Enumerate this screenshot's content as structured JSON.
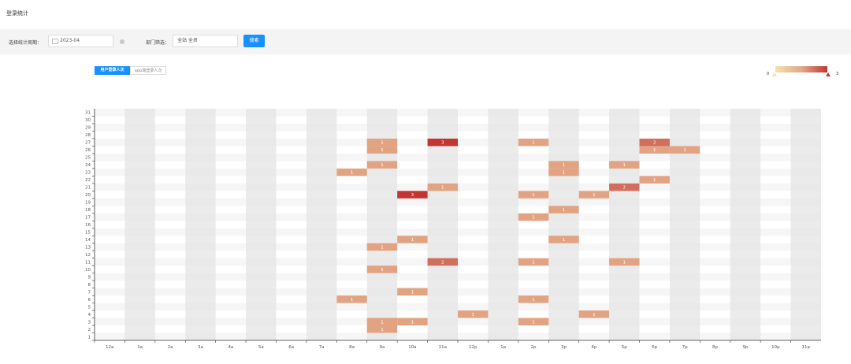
{
  "page": {
    "title": "登录统计"
  },
  "filters": {
    "date_label": "选择统计周期：",
    "date_value": "2023-04",
    "dept_label": "部门筛选：",
    "dept_value": "全站 全员",
    "search_label": "搜索"
  },
  "tabs": [
    {
      "label": "用户登录人次",
      "active": true
    },
    {
      "label": "app端登录人次",
      "active": false
    }
  ],
  "visual_map": {
    "min": "0",
    "max": "3",
    "colors": [
      "#f4e1a7",
      "#c23531"
    ]
  },
  "colors": {
    "accent": "#1890ff",
    "band_alt": "#e8e8e8",
    "cell_low": "#e2a382",
    "cell_high": "#c23531"
  },
  "chart_data": {
    "type": "heatmap",
    "x_categories": [
      "12a",
      "1a",
      "2a",
      "3a",
      "4a",
      "5a",
      "6a",
      "7a",
      "8a",
      "9a",
      "10a",
      "11a",
      "12p",
      "1p",
      "2p",
      "3p",
      "4p",
      "5p",
      "6p",
      "7p",
      "8p",
      "9p",
      "10p",
      "11p"
    ],
    "y_categories": [
      "1",
      "2",
      "3",
      "4",
      "5",
      "6",
      "7",
      "8",
      "9",
      "10",
      "11",
      "12",
      "13",
      "14",
      "15",
      "16",
      "17",
      "18",
      "19",
      "20",
      "21",
      "22",
      "23",
      "24",
      "25",
      "26",
      "27",
      "28",
      "29",
      "30",
      "31"
    ],
    "cells": [
      {
        "x": "9a",
        "y": "27",
        "value": 1
      },
      {
        "x": "11a",
        "y": "27",
        "value": 3
      },
      {
        "x": "2p",
        "y": "27",
        "value": 1
      },
      {
        "x": "6p",
        "y": "27",
        "value": 2
      },
      {
        "x": "9a",
        "y": "26",
        "value": 1
      },
      {
        "x": "6p",
        "y": "26",
        "value": 1
      },
      {
        "x": "7p",
        "y": "26",
        "value": 1
      },
      {
        "x": "9a",
        "y": "24",
        "value": 1
      },
      {
        "x": "3p",
        "y": "24",
        "value": 1
      },
      {
        "x": "5p",
        "y": "24",
        "value": 1
      },
      {
        "x": "8a",
        "y": "23",
        "value": 1
      },
      {
        "x": "3p",
        "y": "23",
        "value": 1
      },
      {
        "x": "6p",
        "y": "22",
        "value": 1
      },
      {
        "x": "11a",
        "y": "21",
        "value": 1
      },
      {
        "x": "5p",
        "y": "21",
        "value": 2
      },
      {
        "x": "10a",
        "y": "20",
        "value": 3
      },
      {
        "x": "2p",
        "y": "20",
        "value": 1
      },
      {
        "x": "4p",
        "y": "20",
        "value": 1
      },
      {
        "x": "3p",
        "y": "18",
        "value": 1
      },
      {
        "x": "2p",
        "y": "17",
        "value": 1
      },
      {
        "x": "10a",
        "y": "14",
        "value": 1
      },
      {
        "x": "3p",
        "y": "14",
        "value": 1
      },
      {
        "x": "9a",
        "y": "13",
        "value": 1
      },
      {
        "x": "11a",
        "y": "11",
        "value": 2
      },
      {
        "x": "2p",
        "y": "11",
        "value": 1
      },
      {
        "x": "5p",
        "y": "11",
        "value": 1
      },
      {
        "x": "9a",
        "y": "10",
        "value": 1
      },
      {
        "x": "10a",
        "y": "7",
        "value": 1
      },
      {
        "x": "8a",
        "y": "6",
        "value": 1
      },
      {
        "x": "2p",
        "y": "6",
        "value": 1
      },
      {
        "x": "12p",
        "y": "4",
        "value": 1
      },
      {
        "x": "4p",
        "y": "4",
        "value": 1
      },
      {
        "x": "9a",
        "y": "3",
        "value": 1
      },
      {
        "x": "10a",
        "y": "3",
        "value": 1
      },
      {
        "x": "2p",
        "y": "3",
        "value": 1
      },
      {
        "x": "9a",
        "y": "2",
        "value": 1
      }
    ],
    "value_range": [
      0,
      3
    ]
  }
}
